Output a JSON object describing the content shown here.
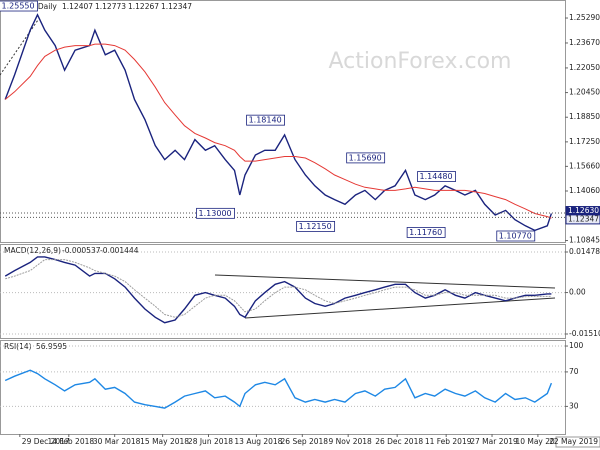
{
  "chart_data": {
    "type": "line",
    "header": {
      "symbol": "EURUSD,Daily",
      "ohlc": [
        1.12407,
        1.12773,
        1.12267,
        1.12347
      ]
    },
    "watermark": "ActionForex.com",
    "xlim": [
      -19,
      523
    ],
    "xticks": [
      {
        "value": 0,
        "label": "29 Dec 2017"
      },
      {
        "value": 47,
        "label": "14 Feb 2018"
      },
      {
        "value": 91,
        "label": "30 Mar 2018"
      },
      {
        "value": 137,
        "label": "15 May 2018"
      },
      {
        "value": 181,
        "label": "28 Jun 2018"
      },
      {
        "value": 227,
        "label": "13 Aug 2018"
      },
      {
        "value": 271,
        "label": "26 Sep 2018"
      },
      {
        "value": 315,
        "label": "9 Nov 2018"
      },
      {
        "value": 362,
        "label": "26 Dec 2018"
      },
      {
        "value": 409,
        "label": "11 Feb 2019"
      },
      {
        "value": 453,
        "label": "27 Mar 2019"
      },
      {
        "value": 497,
        "label": "10 May 2019"
      }
    ],
    "cursor_date": "22 May 2019",
    "x": [
      -14,
      -5,
      10,
      17,
      24,
      34,
      43,
      53,
      67,
      72,
      82,
      91,
      101,
      110,
      120,
      130,
      139,
      149,
      158,
      168,
      178,
      187,
      197,
      206,
      211,
      216,
      226,
      235,
      245,
      254,
      264,
      274,
      283,
      293,
      302,
      312,
      322,
      331,
      341,
      350,
      360,
      370,
      379,
      389,
      398,
      408,
      418,
      427,
      437,
      446,
      456,
      466,
      475,
      485,
      494,
      506,
      510
    ],
    "price": {
      "ylim": [
        1.1075,
        1.2646
      ],
      "yticks": [
        {
          "value": 1.2529,
          "label": "1.25290"
        },
        {
          "value": 1.2367,
          "label": "1.23670"
        },
        {
          "value": 1.2205,
          "label": "1.22050"
        },
        {
          "value": 1.2045,
          "label": "1.20450"
        },
        {
          "value": 1.1885,
          "label": "1.18850"
        },
        {
          "value": 1.1725,
          "label": "1.17250"
        },
        {
          "value": 1.1566,
          "label": "1.15660"
        },
        {
          "value": 1.1406,
          "label": "1.14060"
        },
        1.10845
      ],
      "series": [
        {
          "name": "EURUSD",
          "color": "#1a237e",
          "values": [
            1.2,
            1.216,
            1.245,
            1.255,
            1.245,
            1.235,
            1.219,
            1.232,
            1.235,
            1.245,
            1.229,
            1.232,
            1.219,
            1.2,
            1.187,
            1.17,
            1.161,
            1.167,
            1.161,
            1.174,
            1.167,
            1.17,
            1.161,
            1.154,
            1.138,
            1.151,
            1.164,
            1.167,
            1.167,
            1.177,
            1.161,
            1.151,
            1.144,
            1.138,
            1.135,
            1.132,
            1.138,
            1.141,
            1.135,
            1.141,
            1.144,
            1.154,
            1.138,
            1.135,
            1.138,
            1.144,
            1.141,
            1.138,
            1.141,
            1.132,
            1.125,
            1.128,
            1.122,
            1.118,
            1.115,
            1.118,
            1.126
          ]
        },
        {
          "name": "MA",
          "color": "#e53935",
          "values": [
            1.2,
            1.205,
            1.215,
            1.222,
            1.228,
            1.232,
            1.234,
            1.235,
            1.235,
            1.236,
            1.236,
            1.235,
            1.232,
            1.226,
            1.218,
            1.208,
            1.198,
            1.19,
            1.183,
            1.178,
            1.175,
            1.172,
            1.17,
            1.167,
            1.163,
            1.16,
            1.16,
            1.161,
            1.162,
            1.163,
            1.163,
            1.162,
            1.159,
            1.155,
            1.151,
            1.148,
            1.145,
            1.143,
            1.142,
            1.141,
            1.141,
            1.142,
            1.143,
            1.142,
            1.141,
            1.141,
            1.141,
            1.141,
            1.14,
            1.139,
            1.137,
            1.135,
            1.132,
            1.129,
            1.126,
            1.124,
            1.123
          ]
        }
      ],
      "levels": [
        {
          "label": "1.25550",
          "value": 1.2555,
          "x": 17,
          "kind": "high"
        },
        {
          "label": "1.18140",
          "value": 1.1814,
          "x": 254,
          "kind": "high"
        },
        {
          "label": "1.15690",
          "value": 1.1569,
          "x": 350,
          "kind": "high"
        },
        {
          "label": "1.14480",
          "value": 1.1448,
          "x": 418,
          "kind": "high"
        },
        {
          "label": "1.13000",
          "value": 1.13,
          "x": 206,
          "kind": "low"
        },
        {
          "label": "1.12150",
          "value": 1.1215,
          "x": 302,
          "kind": "low"
        },
        {
          "label": "1.11760",
          "value": 1.1176,
          "x": 408,
          "kind": "low"
        },
        {
          "label": "1.10770",
          "value": 1.1077,
          "x": 494,
          "kind": "low"
        }
      ],
      "price_markers": [
        {
          "value": 1.1263,
          "label": "1.12630",
          "color": "#1a237e"
        },
        {
          "value": 1.12347,
          "label": "1.12347",
          "color": "#e8eaf6"
        }
      ]
    },
    "macd": {
      "title": "MACD(12,26,9)",
      "readings": [
        -0.000537,
        -0.001444
      ],
      "ylim": [
        -0.01656,
        0.0177
      ],
      "yticks": [
        0.014786,
        {
          "value": 0,
          "label": "0.00"
        },
        -0.015107
      ],
      "series": [
        {
          "name": "MACD",
          "color": "#1a237e",
          "values": [
            0.006,
            0.008,
            0.011,
            0.013,
            0.013,
            0.012,
            0.011,
            0.01,
            0.006,
            0.007,
            0.007,
            0.005,
            0.002,
            -0.002,
            -0.006,
            -0.009,
            -0.011,
            -0.01,
            -0.006,
            -0.001,
            0,
            -0.001,
            -0.002,
            -0.005,
            -0.008,
            -0.009,
            -0.003,
            0,
            0.003,
            0.004,
            0.002,
            -0.002,
            -0.004,
            -0.005,
            -0.004,
            -0.002,
            -0.001,
            0,
            0.001,
            0.002,
            0.003,
            0.003,
            0,
            -0.002,
            -0.001,
            0.001,
            -0.001,
            -0.002,
            0,
            -0.001,
            -0.002,
            -0.003,
            -0.002,
            -0.001,
            -0.001,
            -0.0005,
            -0.0005
          ]
        },
        {
          "name": "Signal",
          "color": "#9e9e9e",
          "values": [
            0.005,
            0.006,
            0.008,
            0.01,
            0.012,
            0.012,
            0.012,
            0.011,
            0.009,
            0.008,
            0.007,
            0.006,
            0.004,
            0.001,
            -0.002,
            -0.005,
            -0.008,
            -0.009,
            -0.008,
            -0.005,
            -0.002,
            -0.001,
            -0.001,
            -0.003,
            -0.005,
            -0.007,
            -0.006,
            -0.003,
            0,
            0.002,
            0.002,
            0.001,
            -0.001,
            -0.003,
            -0.004,
            -0.003,
            -0.002,
            -0.001,
            0,
            0.001,
            0.002,
            0.002,
            0.001,
            -0.001,
            -0.001,
            0,
            0,
            -0.001,
            -0.001,
            -0.001,
            -0.001,
            -0.002,
            -0.002,
            -0.0015,
            -0.0014,
            -0.0014,
            -0.0014
          ]
        }
      ]
    },
    "rsi": {
      "title": "RSI(14)",
      "reading": 56.9595,
      "ylim": [
        -2,
        107
      ],
      "yticks": [
        100,
        70,
        30
      ],
      "series": [
        {
          "name": "RSI",
          "color": "#1e88e5",
          "values": [
            60,
            65,
            72,
            68,
            62,
            55,
            48,
            55,
            58,
            62,
            50,
            52,
            45,
            35,
            32,
            30,
            28,
            35,
            42,
            45,
            48,
            40,
            42,
            35,
            30,
            45,
            55,
            58,
            55,
            62,
            40,
            35,
            38,
            35,
            38,
            35,
            45,
            48,
            42,
            50,
            52,
            62,
            40,
            45,
            42,
            50,
            45,
            42,
            48,
            40,
            35,
            45,
            38,
            40,
            35,
            45,
            57
          ]
        }
      ]
    }
  }
}
